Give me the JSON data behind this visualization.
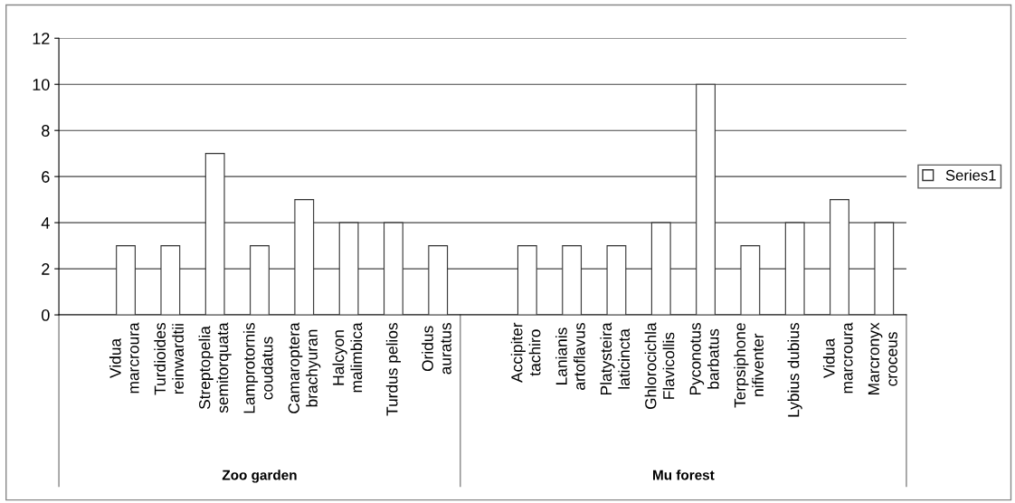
{
  "chart_data": {
    "type": "bar",
    "categories": [
      null,
      "Vidua\nmarcroura",
      "Turdioides\nreinwardtii",
      "Streptopelia\nsemitorquata",
      "Lamprotornis\ncoudatus",
      "Camaroptera\nbrachyuran",
      "Halcyon\nmalimbica",
      "Turdus pelios",
      "Oridus\nauratus",
      null,
      "Accipiter\ntachiro",
      "Lanianis\nartoflavus",
      "Platysteira\nlaticincta",
      "Ghlorocichla\nFlavicollis",
      "Pyconotus\nbarbatus",
      "Terpsiphone\nnifiventer",
      "Lybius dubius",
      "Vidua\nmarcroura",
      "Marcronyx\ncroceus"
    ],
    "series": [
      {
        "name": "Series1",
        "color": "#ffffff",
        "values": [
          null,
          3,
          3,
          7,
          3,
          5,
          4,
          4,
          3,
          null,
          3,
          3,
          3,
          4,
          10,
          3,
          4,
          5,
          4
        ]
      }
    ],
    "ylim": [
      0,
      12
    ],
    "yticks": [
      0,
      2,
      4,
      6,
      8,
      10,
      12
    ],
    "grid": "y",
    "legend": "right",
    "annotations": [
      "Zoo garden",
      "Mu forest"
    ]
  }
}
